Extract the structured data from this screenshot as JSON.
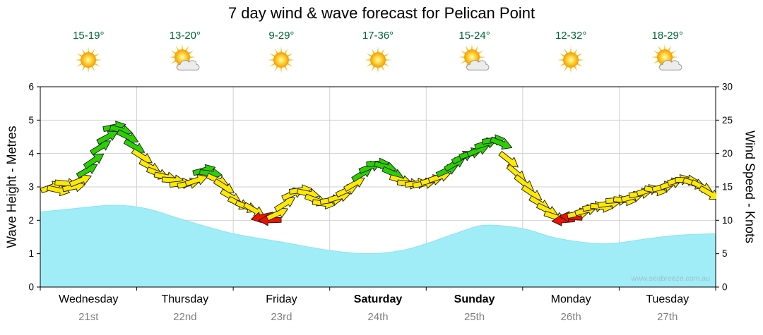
{
  "title": "7 day wind & wave forecast for Pelican Point",
  "watermark": "www.seabreeze.com.au",
  "days": [
    {
      "label": "Wednesday",
      "date": "21st",
      "temp": "15-19°",
      "icon": "sunny",
      "weekend": false
    },
    {
      "label": "Thursday",
      "date": "22nd",
      "temp": "13-20°",
      "icon": "partly-cloudy",
      "weekend": false
    },
    {
      "label": "Friday",
      "date": "23rd",
      "temp": "9-29°",
      "icon": "sunny",
      "weekend": false
    },
    {
      "label": "Saturday",
      "date": "24th",
      "temp": "17-36°",
      "icon": "sunny",
      "weekend": true
    },
    {
      "label": "Sunday",
      "date": "25th",
      "temp": "15-24°",
      "icon": "partly-cloudy",
      "weekend": true
    },
    {
      "label": "Monday",
      "date": "26th",
      "temp": "12-32°",
      "icon": "sunny",
      "weekend": false
    },
    {
      "label": "Tuesday",
      "date": "27th",
      "temp": "18-29°",
      "icon": "partly-cloudy",
      "weekend": false
    }
  ],
  "chart_data": {
    "type": "area",
    "title": "7 day wind & wave forecast for Pelican Point",
    "x_categories": [
      "Wednesday 21st",
      "Thursday 22nd",
      "Friday 23rd",
      "Saturday 24th",
      "Sunday 25th",
      "Monday 26th",
      "Tuesday 27th"
    ],
    "left_axis": {
      "label": "Wave Height - Metres",
      "min": 0,
      "max": 6,
      "ticks": [
        0,
        1,
        2,
        3,
        4,
        5,
        6
      ]
    },
    "right_axis": {
      "label": "Wind Speed - Knots",
      "min": 0,
      "max": 30,
      "ticks": [
        0,
        5,
        10,
        15,
        20,
        25,
        30
      ]
    },
    "grid": true,
    "wave_height_m": {
      "units": "metres",
      "x_units": "days from start (7 day span)",
      "points": [
        [
          0,
          2.25
        ],
        [
          0.35,
          2.35
        ],
        [
          0.75,
          2.45
        ],
        [
          1.1,
          2.35
        ],
        [
          1.5,
          2.0
        ],
        [
          2.0,
          1.6
        ],
        [
          2.5,
          1.35
        ],
        [
          3.0,
          1.1
        ],
        [
          3.4,
          1.0
        ],
        [
          3.75,
          1.1
        ],
        [
          4.0,
          1.3
        ],
        [
          4.3,
          1.6
        ],
        [
          4.6,
          1.85
        ],
        [
          5.0,
          1.75
        ],
        [
          5.3,
          1.5
        ],
        [
          5.6,
          1.35
        ],
        [
          5.9,
          1.3
        ],
        [
          6.3,
          1.45
        ],
        [
          6.6,
          1.55
        ],
        [
          7.0,
          1.6
        ]
      ]
    },
    "wind_arrows": {
      "units": "knots",
      "format": "[day, knots, rotation_deg (0=right, negative=up-right, 180=left), color]",
      "points": [
        [
          0.12,
          15,
          -20,
          "yellow"
        ],
        [
          0.19,
          14.5,
          12,
          "yellow"
        ],
        [
          0.27,
          15.5,
          6,
          "yellow"
        ],
        [
          0.35,
          15,
          -12,
          "yellow"
        ],
        [
          0.42,
          16,
          -22,
          "yellow"
        ],
        [
          0.49,
          17.5,
          -30,
          "green"
        ],
        [
          0.56,
          19,
          -34,
          "green"
        ],
        [
          0.63,
          21,
          -32,
          "green"
        ],
        [
          0.7,
          22.5,
          -28,
          "green"
        ],
        [
          0.77,
          24,
          -12,
          "green"
        ],
        [
          0.84,
          23.5,
          14,
          "green"
        ],
        [
          0.91,
          22.5,
          26,
          "green"
        ],
        [
          0.98,
          21,
          30,
          "green"
        ],
        [
          1.06,
          19.5,
          32,
          "yellow"
        ],
        [
          1.14,
          18,
          28,
          "yellow"
        ],
        [
          1.22,
          17,
          22,
          "yellow"
        ],
        [
          1.3,
          16.5,
          12,
          "yellow"
        ],
        [
          1.38,
          16,
          4,
          "yellow"
        ],
        [
          1.46,
          15.5,
          -6,
          "yellow"
        ],
        [
          1.54,
          15.5,
          -12,
          "yellow"
        ],
        [
          1.62,
          16,
          -18,
          "yellow"
        ],
        [
          1.7,
          17.5,
          -15,
          "green"
        ],
        [
          1.77,
          17,
          8,
          "green"
        ],
        [
          1.84,
          16,
          24,
          "yellow"
        ],
        [
          1.91,
          15,
          32,
          "yellow"
        ],
        [
          1.98,
          13.5,
          30,
          "yellow"
        ],
        [
          2.06,
          12.5,
          26,
          "yellow"
        ],
        [
          2.14,
          12,
          22,
          "yellow"
        ],
        [
          2.22,
          11.5,
          30,
          "yellow"
        ],
        [
          2.3,
          10.5,
          168,
          "red"
        ],
        [
          2.38,
          10,
          178,
          "red"
        ],
        [
          2.46,
          11,
          -25,
          "yellow"
        ],
        [
          2.54,
          12.5,
          -32,
          "yellow"
        ],
        [
          2.62,
          14,
          -24,
          "yellow"
        ],
        [
          2.7,
          14.5,
          -8,
          "yellow"
        ],
        [
          2.78,
          14,
          12,
          "yellow"
        ],
        [
          2.86,
          13,
          20,
          "yellow"
        ],
        [
          2.94,
          12.5,
          8,
          "yellow"
        ],
        [
          3.02,
          13,
          -8,
          "yellow"
        ],
        [
          3.1,
          13.5,
          -16,
          "yellow"
        ],
        [
          3.18,
          14.5,
          -24,
          "yellow"
        ],
        [
          3.26,
          15.5,
          -30,
          "yellow"
        ],
        [
          3.34,
          17,
          -32,
          "green"
        ],
        [
          3.42,
          18,
          -22,
          "green"
        ],
        [
          3.5,
          18.5,
          -4,
          "green"
        ],
        [
          3.58,
          18,
          16,
          "green"
        ],
        [
          3.66,
          17,
          24,
          "green"
        ],
        [
          3.74,
          16,
          16,
          "yellow"
        ],
        [
          3.82,
          15.5,
          6,
          "yellow"
        ],
        [
          3.9,
          15.5,
          -6,
          "yellow"
        ],
        [
          3.98,
          15.5,
          -10,
          "yellow"
        ],
        [
          4.06,
          16,
          -14,
          "yellow"
        ],
        [
          4.14,
          16.5,
          -18,
          "yellow"
        ],
        [
          4.22,
          17.5,
          -24,
          "green"
        ],
        [
          4.3,
          18.5,
          -30,
          "green"
        ],
        [
          4.38,
          19.5,
          -26,
          "green"
        ],
        [
          4.46,
          20,
          -18,
          "green"
        ],
        [
          4.54,
          20.5,
          -22,
          "green"
        ],
        [
          4.62,
          21.5,
          -18,
          "green"
        ],
        [
          4.7,
          22,
          -8,
          "green"
        ],
        [
          4.78,
          21.5,
          22,
          "green"
        ],
        [
          4.86,
          19,
          38,
          "yellow"
        ],
        [
          4.94,
          17,
          40,
          "yellow"
        ],
        [
          5.02,
          15.5,
          38,
          "yellow"
        ],
        [
          5.1,
          14,
          34,
          "yellow"
        ],
        [
          5.18,
          12.5,
          30,
          "yellow"
        ],
        [
          5.26,
          11.5,
          26,
          "yellow"
        ],
        [
          5.34,
          10.5,
          18,
          "yellow"
        ],
        [
          5.42,
          10,
          175,
          "red"
        ],
        [
          5.5,
          10.5,
          185,
          "red"
        ],
        [
          5.58,
          11,
          -12,
          "yellow"
        ],
        [
          5.66,
          11.5,
          -16,
          "yellow"
        ],
        [
          5.74,
          12,
          -10,
          "yellow"
        ],
        [
          5.82,
          12,
          6,
          "yellow"
        ],
        [
          5.9,
          12.5,
          -8,
          "yellow"
        ],
        [
          5.98,
          13,
          -4,
          "yellow"
        ],
        [
          6.06,
          13,
          6,
          "yellow"
        ],
        [
          6.14,
          13.5,
          -14,
          "yellow"
        ],
        [
          6.22,
          14,
          -10,
          "yellow"
        ],
        [
          6.3,
          14.5,
          -18,
          "yellow"
        ],
        [
          6.38,
          14.5,
          10,
          "yellow"
        ],
        [
          6.46,
          15,
          -14,
          "yellow"
        ],
        [
          6.54,
          15.5,
          -20,
          "yellow"
        ],
        [
          6.62,
          16,
          -14,
          "yellow"
        ],
        [
          6.7,
          16,
          2,
          "yellow"
        ],
        [
          6.78,
          15.5,
          18,
          "yellow"
        ],
        [
          6.86,
          15,
          26,
          "yellow"
        ],
        [
          6.94,
          14,
          30,
          "yellow"
        ]
      ]
    },
    "colors": {
      "wave_fill": "#A0EDF7",
      "wave_line": "#8AE4F0",
      "arrow_yellow": "#FFE900",
      "arrow_green": "#2BD000",
      "arrow_red": "#F01000",
      "grid": "#D2D2D2",
      "frame": "#000000",
      "temp_text": "#006837",
      "date_text": "#7F7F7F"
    }
  }
}
